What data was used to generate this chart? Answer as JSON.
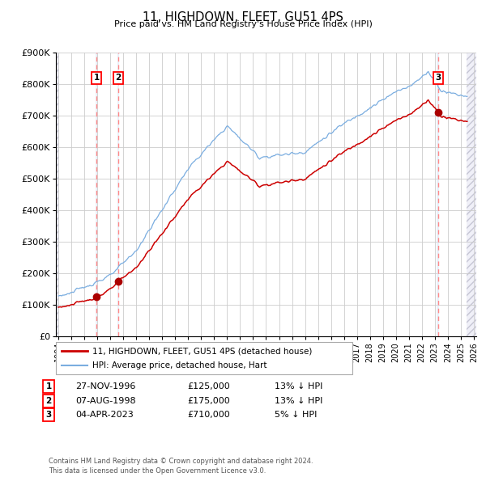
{
  "title": "11, HIGHDOWN, FLEET, GU51 4PS",
  "subtitle": "Price paid vs. HM Land Registry's House Price Index (HPI)",
  "ylim": [
    0,
    900000
  ],
  "yticks": [
    0,
    100000,
    200000,
    300000,
    400000,
    500000,
    600000,
    700000,
    800000,
    900000
  ],
  "ytick_labels": [
    "£0",
    "£100K",
    "£200K",
    "£300K",
    "£400K",
    "£500K",
    "£600K",
    "£700K",
    "£800K",
    "£900K"
  ],
  "xmin": 1993.8,
  "xmax": 2026.2,
  "sale_dates": [
    1996.92,
    1998.6,
    2023.25
  ],
  "sale_prices": [
    125000,
    175000,
    710000
  ],
  "sale_labels": [
    "1",
    "2",
    "3"
  ],
  "legend_line1": "11, HIGHDOWN, FLEET, GU51 4PS (detached house)",
  "legend_line2": "HPI: Average price, detached house, Hart",
  "table_rows": [
    {
      "num": "1",
      "date": "27-NOV-1996",
      "price": "£125,000",
      "change": "13% ↓ HPI"
    },
    {
      "num": "2",
      "date": "07-AUG-1998",
      "price": "£175,000",
      "change": "13% ↓ HPI"
    },
    {
      "num": "3",
      "date": "04-APR-2023",
      "price": "£710,000",
      "change": "5% ↓ HPI"
    }
  ],
  "footer": "Contains HM Land Registry data © Crown copyright and database right 2024.\nThis data is licensed under the Open Government Licence v3.0.",
  "sale_line_color": "#cc0000",
  "hpi_line_color": "#7aade0",
  "dot_color": "#aa0000",
  "vline_color": "#ff8888",
  "vspan_color": "#dce8f5",
  "grid_color": "#cccccc",
  "hatch_color": "#bbbbcc"
}
